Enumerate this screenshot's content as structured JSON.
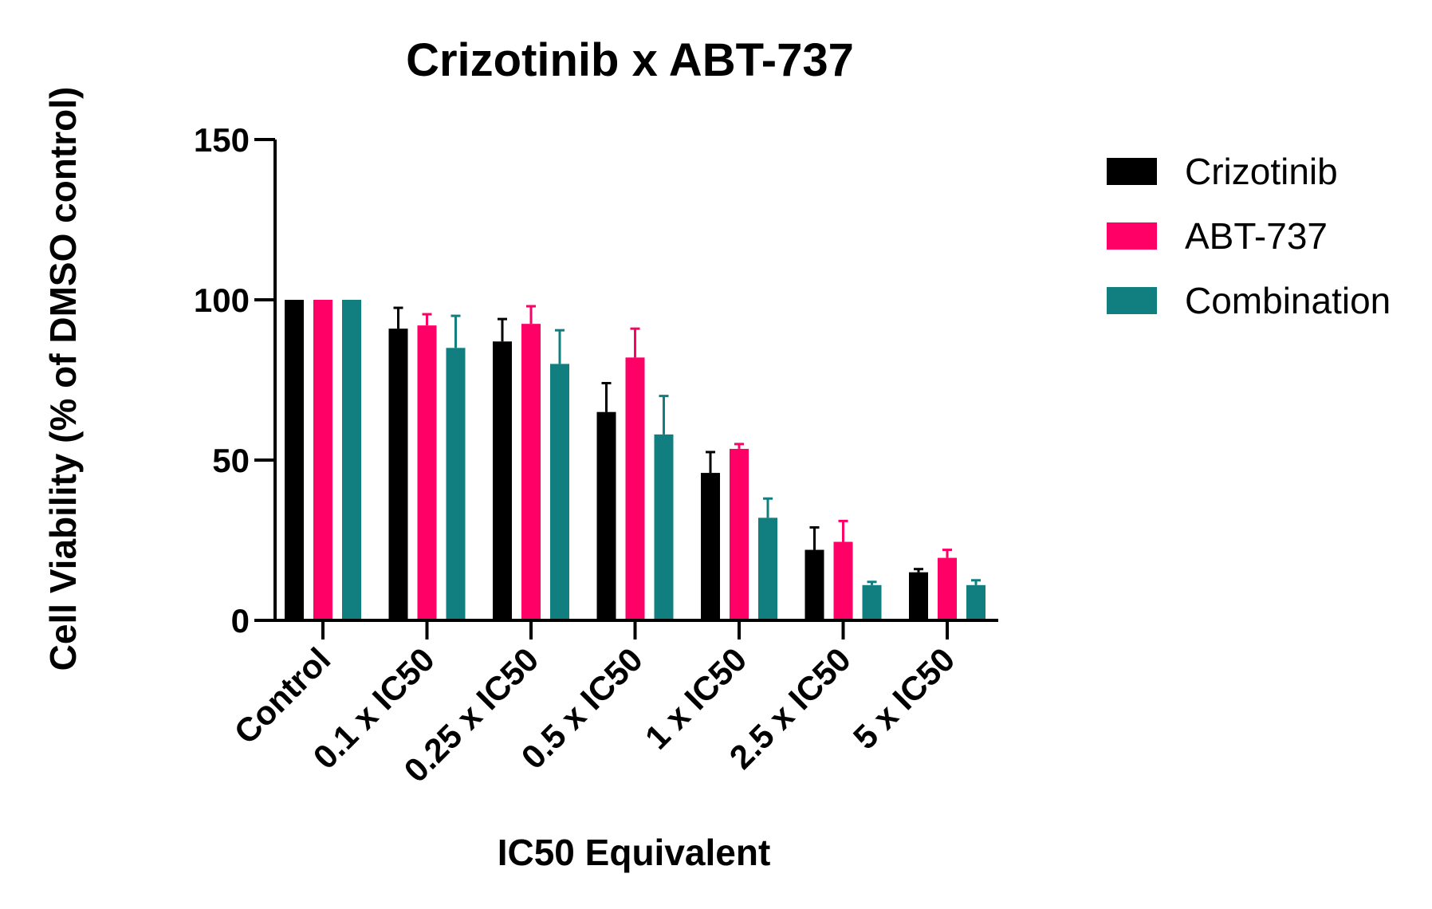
{
  "chart_data": {
    "type": "bar",
    "title": "Crizotinib x ABT-737",
    "xlabel": "IC50 Equivalent",
    "ylabel": "Cell Viability (% of DMSO control)",
    "ylim": [
      0,
      150
    ],
    "yticks": [
      0,
      50,
      100,
      150
    ],
    "grid": false,
    "legend_position": "top-right",
    "categories": [
      "Control",
      "0.1 x IC50",
      "0.25 x IC50",
      "0.5 x IC50",
      "1 x IC50",
      "2.5 x IC50",
      "5 x IC50"
    ],
    "series": [
      {
        "name": "Crizotinib",
        "color": "#000000",
        "values": [
          100,
          91,
          87,
          65,
          46,
          22,
          15
        ],
        "errors": [
          0,
          6.5,
          7,
          9,
          6.5,
          7,
          1
        ]
      },
      {
        "name": "ABT-737",
        "color": "#ff0066",
        "values": [
          100,
          92,
          92.5,
          82,
          53.5,
          24.5,
          19.5
        ],
        "errors": [
          0,
          3.5,
          5.5,
          9,
          1.5,
          6.5,
          2.5
        ]
      },
      {
        "name": "Combination",
        "color": "#117f7f",
        "values": [
          100,
          85,
          80,
          58,
          32,
          11,
          11
        ],
        "errors": [
          0,
          10,
          10.5,
          12,
          6,
          1,
          1.5
        ]
      }
    ]
  }
}
